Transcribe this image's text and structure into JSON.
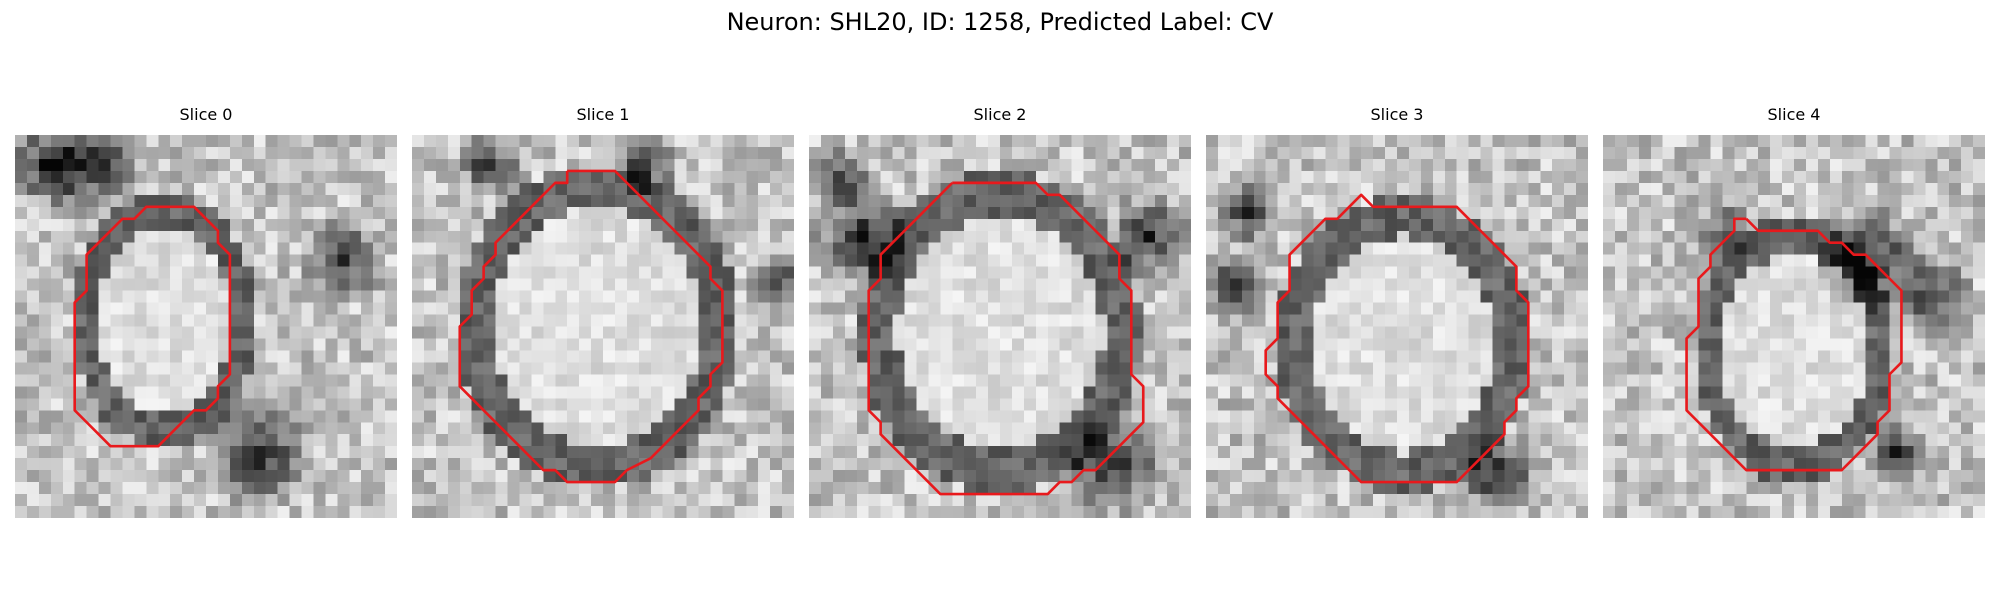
{
  "figure": {
    "title": "Neuron: SHL20, ID: 1258, Predicted Label: CV"
  },
  "colors": {
    "contour": "#e8191c",
    "background": "#ffffff"
  },
  "panels": [
    {
      "title": "Slice 0",
      "image_description": "grayscale EM patch, 32x32 pixel grid, bright round soma with dark boundary",
      "contour": [
        [
          12,
          6
        ],
        [
          15,
          6
        ],
        [
          16,
          7
        ],
        [
          17,
          8
        ],
        [
          17,
          9
        ],
        [
          18,
          10
        ],
        [
          18,
          11
        ],
        [
          18,
          12
        ],
        [
          18,
          13
        ],
        [
          18,
          14
        ],
        [
          18,
          15
        ],
        [
          18,
          16
        ],
        [
          18,
          17
        ],
        [
          18,
          18
        ],
        [
          18,
          19
        ],
        [
          18,
          20
        ],
        [
          17,
          21
        ],
        [
          17,
          22
        ],
        [
          16,
          23
        ],
        [
          15,
          23
        ],
        [
          14,
          24
        ],
        [
          13,
          25
        ],
        [
          12,
          26
        ],
        [
          11,
          26
        ],
        [
          10,
          26
        ],
        [
          9,
          26
        ],
        [
          8,
          26
        ],
        [
          7,
          25
        ],
        [
          6,
          24
        ],
        [
          5,
          23
        ],
        [
          5,
          22
        ],
        [
          5,
          21
        ],
        [
          5,
          20
        ],
        [
          5,
          19
        ],
        [
          5,
          18
        ],
        [
          5,
          17
        ],
        [
          5,
          16
        ],
        [
          5,
          15
        ],
        [
          5,
          14
        ],
        [
          6,
          13
        ],
        [
          6,
          12
        ],
        [
          6,
          11
        ],
        [
          6,
          10
        ],
        [
          7,
          9
        ],
        [
          8,
          8
        ],
        [
          9,
          7
        ],
        [
          10,
          7
        ],
        [
          11,
          6
        ],
        [
          12,
          6
        ]
      ]
    },
    {
      "title": "Slice 1",
      "image_description": "grayscale EM patch, 32x32 pixel grid, large bright round soma",
      "contour": [
        [
          13,
          3
        ],
        [
          17,
          3
        ],
        [
          18,
          4
        ],
        [
          19,
          5
        ],
        [
          20,
          6
        ],
        [
          21,
          7
        ],
        [
          22,
          8
        ],
        [
          23,
          9
        ],
        [
          24,
          10
        ],
        [
          25,
          11
        ],
        [
          25,
          12
        ],
        [
          26,
          13
        ],
        [
          26,
          14
        ],
        [
          26,
          15
        ],
        [
          26,
          16
        ],
        [
          26,
          17
        ],
        [
          26,
          18
        ],
        [
          26,
          19
        ],
        [
          25,
          20
        ],
        [
          25,
          21
        ],
        [
          24,
          22
        ],
        [
          24,
          23
        ],
        [
          23,
          24
        ],
        [
          22,
          25
        ],
        [
          21,
          26
        ],
        [
          20,
          27
        ],
        [
          18,
          28
        ],
        [
          17,
          29
        ],
        [
          13,
          29
        ],
        [
          12,
          28
        ],
        [
          11,
          28
        ],
        [
          10,
          27
        ],
        [
          9,
          26
        ],
        [
          8,
          25
        ],
        [
          7,
          24
        ],
        [
          6,
          23
        ],
        [
          5,
          22
        ],
        [
          4,
          21
        ],
        [
          4,
          20
        ],
        [
          4,
          19
        ],
        [
          4,
          18
        ],
        [
          4,
          17
        ],
        [
          4,
          16
        ],
        [
          5,
          15
        ],
        [
          5,
          14
        ],
        [
          5,
          13
        ],
        [
          6,
          12
        ],
        [
          6,
          11
        ],
        [
          7,
          10
        ],
        [
          7,
          9
        ],
        [
          8,
          8
        ],
        [
          9,
          7
        ],
        [
          10,
          6
        ],
        [
          11,
          5
        ],
        [
          12,
          4
        ],
        [
          13,
          4
        ],
        [
          13,
          3
        ]
      ]
    },
    {
      "title": "Slice 2",
      "image_description": "grayscale EM patch, 32x32 pixel grid, bright soma with darker lower-right region",
      "contour": [
        [
          12,
          4
        ],
        [
          19,
          4
        ],
        [
          20,
          5
        ],
        [
          21,
          5
        ],
        [
          22,
          6
        ],
        [
          23,
          7
        ],
        [
          24,
          8
        ],
        [
          25,
          9
        ],
        [
          26,
          10
        ],
        [
          26,
          11
        ],
        [
          26,
          12
        ],
        [
          27,
          13
        ],
        [
          27,
          14
        ],
        [
          27,
          15
        ],
        [
          27,
          16
        ],
        [
          27,
          17
        ],
        [
          27,
          18
        ],
        [
          27,
          19
        ],
        [
          27,
          20
        ],
        [
          28,
          21
        ],
        [
          28,
          22
        ],
        [
          28,
          23
        ],
        [
          28,
          24
        ],
        [
          27,
          25
        ],
        [
          26,
          26
        ],
        [
          25,
          27
        ],
        [
          24,
          28
        ],
        [
          23,
          28
        ],
        [
          22,
          29
        ],
        [
          21,
          29
        ],
        [
          20,
          30
        ],
        [
          18,
          30
        ],
        [
          11,
          30
        ],
        [
          10,
          29
        ],
        [
          9,
          28
        ],
        [
          8,
          27
        ],
        [
          7,
          26
        ],
        [
          6,
          25
        ],
        [
          6,
          24
        ],
        [
          5,
          23
        ],
        [
          5,
          22
        ],
        [
          5,
          21
        ],
        [
          5,
          20
        ],
        [
          5,
          19
        ],
        [
          5,
          18
        ],
        [
          5,
          17
        ],
        [
          5,
          16
        ],
        [
          5,
          15
        ],
        [
          5,
          14
        ],
        [
          5,
          13
        ],
        [
          6,
          12
        ],
        [
          6,
          11
        ],
        [
          6,
          10
        ],
        [
          7,
          9
        ],
        [
          8,
          8
        ],
        [
          9,
          7
        ],
        [
          10,
          6
        ],
        [
          11,
          5
        ],
        [
          12,
          4
        ]
      ]
    },
    {
      "title": "Slice 3",
      "image_description": "grayscale EM patch, 32x32 pixel grid, round soma with dark boundary and dark lower-right blob",
      "contour": [
        [
          12,
          6
        ],
        [
          13,
          5
        ],
        [
          14,
          6
        ],
        [
          21,
          6
        ],
        [
          22,
          7
        ],
        [
          23,
          8
        ],
        [
          24,
          9
        ],
        [
          25,
          10
        ],
        [
          26,
          11
        ],
        [
          26,
          12
        ],
        [
          26,
          13
        ],
        [
          27,
          14
        ],
        [
          27,
          15
        ],
        [
          27,
          16
        ],
        [
          27,
          17
        ],
        [
          27,
          18
        ],
        [
          27,
          19
        ],
        [
          27,
          20
        ],
        [
          27,
          21
        ],
        [
          26,
          22
        ],
        [
          26,
          23
        ],
        [
          25,
          24
        ],
        [
          25,
          25
        ],
        [
          24,
          26
        ],
        [
          23,
          27
        ],
        [
          22,
          28
        ],
        [
          21,
          29
        ],
        [
          20,
          29
        ],
        [
          13,
          29
        ],
        [
          12,
          28
        ],
        [
          11,
          27
        ],
        [
          10,
          26
        ],
        [
          9,
          25
        ],
        [
          8,
          24
        ],
        [
          7,
          23
        ],
        [
          6,
          22
        ],
        [
          6,
          21
        ],
        [
          5,
          20
        ],
        [
          5,
          19
        ],
        [
          5,
          18
        ],
        [
          6,
          17
        ],
        [
          6,
          16
        ],
        [
          6,
          15
        ],
        [
          6,
          14
        ],
        [
          7,
          13
        ],
        [
          7,
          12
        ],
        [
          7,
          11
        ],
        [
          7,
          10
        ],
        [
          8,
          9
        ],
        [
          9,
          8
        ],
        [
          10,
          7
        ],
        [
          11,
          7
        ],
        [
          12,
          6
        ]
      ]
    },
    {
      "title": "Slice 4",
      "image_description": "grayscale EM patch, 32x32 pixel grid, elongated soma with dark ring and dark processes",
      "contour": [
        [
          12,
          7
        ],
        [
          13,
          8
        ],
        [
          14,
          8
        ],
        [
          15,
          8
        ],
        [
          16,
          8
        ],
        [
          18,
          8
        ],
        [
          19,
          9
        ],
        [
          20,
          9
        ],
        [
          21,
          10
        ],
        [
          22,
          10
        ],
        [
          23,
          11
        ],
        [
          24,
          12
        ],
        [
          25,
          13
        ],
        [
          25,
          14
        ],
        [
          25,
          15
        ],
        [
          25,
          16
        ],
        [
          25,
          17
        ],
        [
          25,
          18
        ],
        [
          25,
          19
        ],
        [
          24,
          20
        ],
        [
          24,
          21
        ],
        [
          24,
          22
        ],
        [
          24,
          23
        ],
        [
          23,
          24
        ],
        [
          23,
          25
        ],
        [
          22,
          26
        ],
        [
          21,
          27
        ],
        [
          20,
          28
        ],
        [
          12,
          28
        ],
        [
          11,
          27
        ],
        [
          10,
          26
        ],
        [
          9,
          25
        ],
        [
          8,
          24
        ],
        [
          7,
          23
        ],
        [
          7,
          22
        ],
        [
          7,
          21
        ],
        [
          7,
          20
        ],
        [
          7,
          19
        ],
        [
          7,
          18
        ],
        [
          7,
          17
        ],
        [
          8,
          16
        ],
        [
          8,
          15
        ],
        [
          8,
          14
        ],
        [
          8,
          13
        ],
        [
          8,
          12
        ],
        [
          9,
          11
        ],
        [
          9,
          10
        ],
        [
          10,
          9
        ],
        [
          11,
          8
        ],
        [
          11,
          7
        ],
        [
          12,
          7
        ]
      ]
    }
  ]
}
